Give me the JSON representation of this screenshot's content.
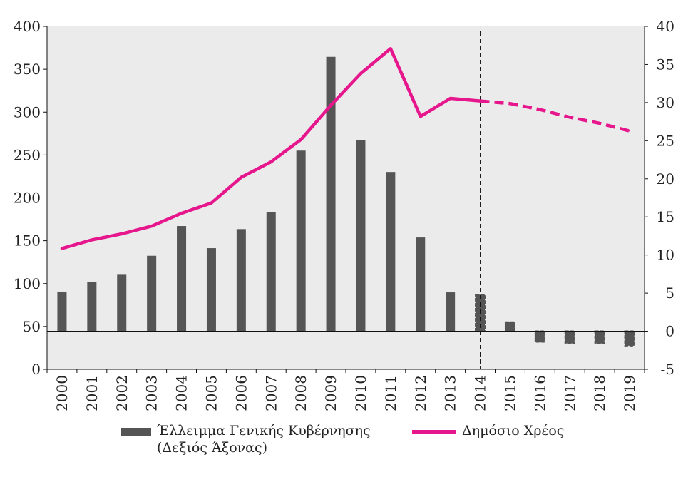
{
  "chart_data": {
    "type": "bar+line",
    "categories": [
      "2000",
      "2001",
      "2002",
      "2003",
      "2004",
      "2005",
      "2006",
      "2007",
      "2008",
      "2009",
      "2010",
      "2011",
      "2012",
      "2013",
      "2014",
      "2015",
      "2016",
      "2017",
      "2018",
      "2019"
    ],
    "left_axis": {
      "ticks": [
        "0",
        "50",
        "100",
        "150",
        "200",
        "250",
        "300",
        "350",
        "400"
      ],
      "range": [
        0,
        400
      ]
    },
    "right_axis": {
      "ticks": [
        "-5",
        "0",
        "5",
        "10",
        "15",
        "20",
        "25",
        "30",
        "35",
        "40"
      ],
      "range": [
        -5,
        40
      ]
    },
    "forecast_start": "2014",
    "grid": false,
    "legend_position": "bottom",
    "series": [
      {
        "name": "Έλλειμμα Γενικής Κυβέρνησης",
        "name_line2": "(Δεξιός Άξονας)",
        "type": "bar",
        "axis": "right",
        "color": "#555555",
        "values": [
          5.2,
          6.5,
          7.5,
          9.9,
          13.8,
          10.9,
          13.4,
          15.6,
          23.7,
          36.0,
          25.1,
          20.9,
          12.3,
          5.1,
          4.8,
          1.2,
          -1.4,
          -1.6,
          -1.6,
          -1.9
        ],
        "projected_from_index": 14
      },
      {
        "name": "Δημόσιο Χρέος",
        "type": "line",
        "axis": "left",
        "color": "#e6168c",
        "values": [
          141,
          151,
          158,
          167,
          182,
          194,
          224,
          242,
          268,
          308,
          345,
          374,
          295,
          316,
          313,
          310,
          303,
          294,
          287,
          278
        ],
        "projected_from_index": 14
      }
    ]
  }
}
